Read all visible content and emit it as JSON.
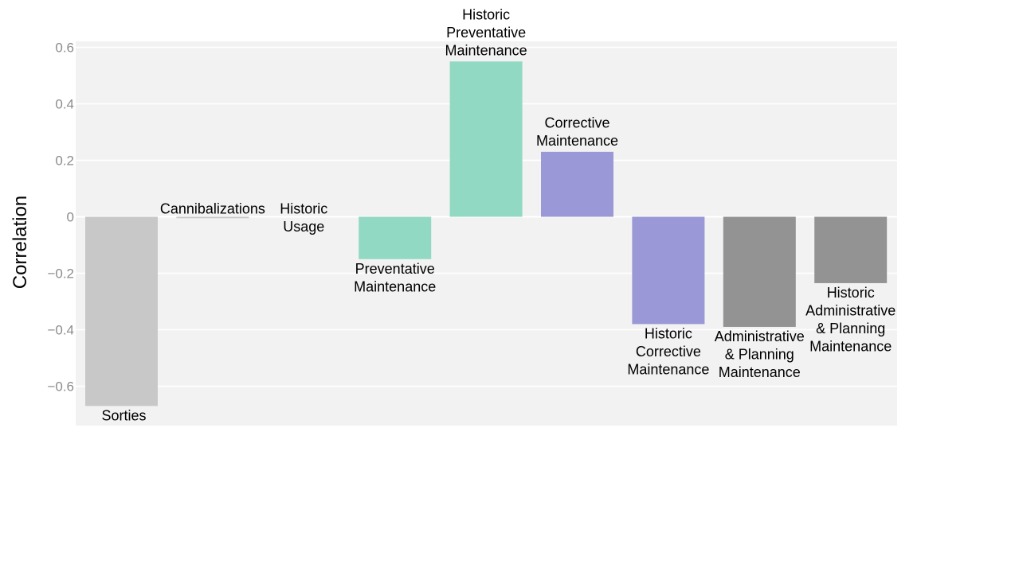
{
  "chart_data": {
    "type": "bar",
    "title": "",
    "xlabel": "",
    "ylabel": "Correlation",
    "ylim": [
      -0.7,
      0.62
    ],
    "yticks": [
      -0.6,
      -0.4,
      -0.2,
      0,
      0.2,
      0.4,
      0.6
    ],
    "ytick_labels": [
      "−0.6",
      "−0.4",
      "−0.2",
      "0",
      "0.2",
      "0.4",
      "0.6"
    ],
    "grid": true,
    "legend": "none",
    "categories": [
      "Sorties",
      "Cannibalizations",
      "Historic Usage",
      "Preventative Maintenance",
      "Historic Preventative Maintenance",
      "Corrective Maintenance",
      "Historic Corrective Maintenance",
      "Administrative & Planning Maintenance",
      "Historic Administrative & Planning Maintenance"
    ],
    "label_lines": [
      [
        "Sorties"
      ],
      [
        "Cannibalizations"
      ],
      [
        "Historic",
        "Usage"
      ],
      [
        "Preventative",
        "Maintenance"
      ],
      [
        "Historic",
        "Preventative",
        "Maintenance"
      ],
      [
        "Corrective",
        "Maintenance"
      ],
      [
        "Historic",
        "Corrective",
        "Maintenance"
      ],
      [
        "Administrative",
        "& Planning",
        "Maintenance"
      ],
      [
        "Historic",
        "Administrative",
        "& Planning",
        "Maintenance"
      ]
    ],
    "values": [
      -0.67,
      -0.005,
      0.0,
      -0.15,
      0.55,
      0.23,
      -0.38,
      -0.39,
      -0.235
    ],
    "colors": [
      "#c8c8c8",
      "#c8c8c8",
      "#c8c8c8",
      "#92d9c3",
      "#92d9c3",
      "#9a98d6",
      "#9a98d6",
      "#939393",
      "#939393"
    ],
    "plot_background": "#f2f2f2",
    "grid_color": "#ffffff"
  }
}
